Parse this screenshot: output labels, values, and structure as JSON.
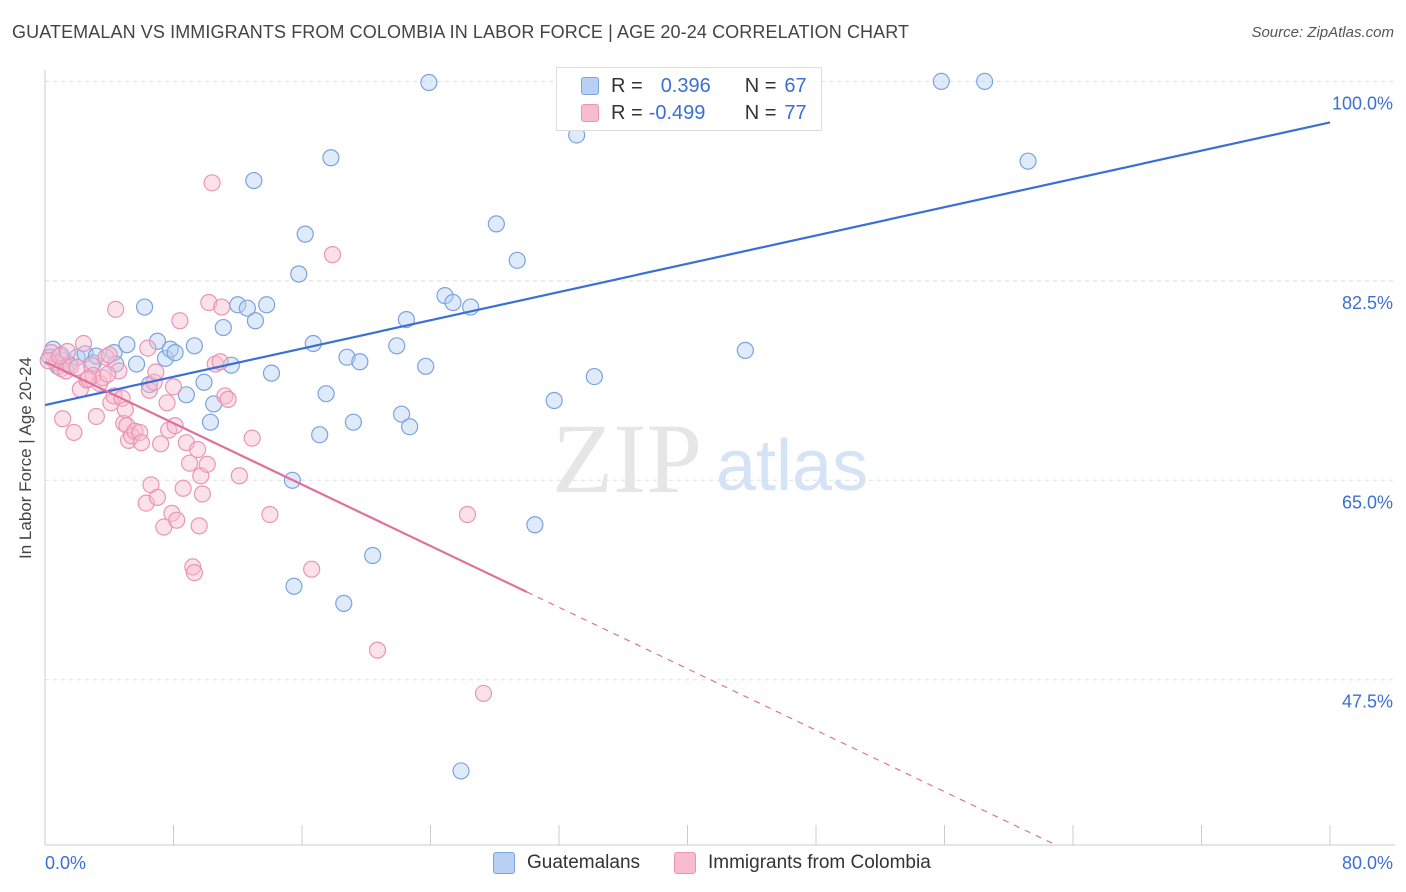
{
  "title": "GUATEMALAN VS IMMIGRANTS FROM COLOMBIA IN LABOR FORCE | AGE 20-24 CORRELATION CHART",
  "source": "Source: ZipAtlas.com",
  "watermark": {
    "zip": "ZIP",
    "atlas": "atlas"
  },
  "legend": {
    "rows": [
      {
        "r_label": "R =",
        "r_value": "0.396",
        "n_label": "N =",
        "n_value": "67"
      },
      {
        "r_label": "R =",
        "r_value": "-0.499",
        "n_label": "N =",
        "n_value": "77"
      }
    ]
  },
  "colors": {
    "blue": "#3b6fd4",
    "blue_fill": "#b8d0f4",
    "pink": "#e0709a",
    "pink_fill": "#f7bcd0",
    "grid": "#dddddd",
    "tick_label": "#3b6fd4"
  },
  "chart_data": {
    "type": "scatter",
    "title": "GUATEMALAN VS IMMIGRANTS FROM COLOMBIA IN LABOR FORCE | AGE 20-24 CORRELATION CHART",
    "xlabel": "",
    "ylabel": "In Labor Force | Age 20-24",
    "xlim": [
      0,
      80
    ],
    "ylim": [
      33,
      101
    ],
    "x_tick_labels": [
      "0.0%",
      "80.0%"
    ],
    "y_ticks": [
      47.5,
      65.0,
      82.5,
      100.0
    ],
    "y_tick_labels": [
      "47.5%",
      "65.0%",
      "82.5%",
      "100.0%"
    ],
    "grid": true,
    "legend_position": "bottom",
    "series": [
      {
        "name": "Guatemalans",
        "color": "#3b6fd4",
        "trend": {
          "x": [
            0,
            80
          ],
          "y": [
            71.6,
            96.4
          ],
          "style": "solid"
        },
        "points": [
          [
            0.5,
            76.5
          ],
          [
            0.8,
            75.0
          ],
          [
            1.2,
            75.5
          ],
          [
            1.5,
            75.2
          ],
          [
            2.0,
            75.8
          ],
          [
            2.5,
            76.1
          ],
          [
            3.0,
            75.3
          ],
          [
            3.2,
            75.9
          ],
          [
            4.3,
            76.2
          ],
          [
            4.4,
            75.2
          ],
          [
            5.1,
            76.9
          ],
          [
            5.7,
            75.2
          ],
          [
            6.2,
            80.2
          ],
          [
            6.5,
            73.4
          ],
          [
            7.0,
            77.2
          ],
          [
            7.5,
            75.7
          ],
          [
            7.8,
            76.5
          ],
          [
            8.1,
            76.2
          ],
          [
            8.8,
            72.5
          ],
          [
            9.3,
            76.8
          ],
          [
            9.9,
            73.6
          ],
          [
            10.3,
            70.1
          ],
          [
            10.5,
            71.7
          ],
          [
            11.1,
            78.4
          ],
          [
            11.6,
            75.1
          ],
          [
            12.0,
            80.4
          ],
          [
            12.6,
            80.1
          ],
          [
            13.1,
            79.0
          ],
          [
            13.8,
            80.4
          ],
          [
            14.1,
            74.4
          ],
          [
            13.0,
            91.3
          ],
          [
            15.4,
            65.0
          ],
          [
            15.5,
            55.7
          ],
          [
            15.8,
            83.1
          ],
          [
            16.2,
            86.6
          ],
          [
            16.7,
            77.0
          ],
          [
            17.1,
            69.0
          ],
          [
            17.5,
            72.6
          ],
          [
            17.8,
            93.3
          ],
          [
            18.6,
            54.2
          ],
          [
            18.8,
            75.8
          ],
          [
            19.2,
            70.1
          ],
          [
            19.6,
            75.4
          ],
          [
            20.4,
            58.4
          ],
          [
            21.9,
            76.8
          ],
          [
            22.2,
            70.8
          ],
          [
            22.5,
            79.1
          ],
          [
            22.7,
            69.7
          ],
          [
            23.7,
            75.0
          ],
          [
            23.9,
            99.9
          ],
          [
            24.9,
            81.2
          ],
          [
            25.4,
            80.6
          ],
          [
            25.9,
            39.5
          ],
          [
            26.5,
            80.2
          ],
          [
            28.1,
            87.5
          ],
          [
            29.4,
            84.3
          ],
          [
            30.5,
            61.1
          ],
          [
            31.7,
            72.0
          ],
          [
            33.1,
            95.3
          ],
          [
            34.2,
            74.1
          ],
          [
            36.2,
            100.0
          ],
          [
            43.6,
            76.4
          ],
          [
            55.8,
            100.0
          ],
          [
            58.5,
            100.0
          ],
          [
            61.2,
            93.0
          ],
          [
            0.3,
            75.8
          ],
          [
            1.0,
            76.0
          ]
        ]
      },
      {
        "name": "Immigrants from Colombia",
        "color": "#e0709a",
        "trend": {
          "x": [
            0,
            30
          ],
          "y": [
            75.4,
            55.2
          ],
          "style": "solid"
        },
        "trend_dashed": {
          "x": [
            30,
            80
          ],
          "y": [
            55.2,
            21.5
          ],
          "style": "dashed"
        },
        "points": [
          [
            0.4,
            76.2
          ],
          [
            0.7,
            75.3
          ],
          [
            1.0,
            74.8
          ],
          [
            1.1,
            70.4
          ],
          [
            1.3,
            74.6
          ],
          [
            1.6,
            75.0
          ],
          [
            1.8,
            69.2
          ],
          [
            2.0,
            74.9
          ],
          [
            2.2,
            73.0
          ],
          [
            2.4,
            77.0
          ],
          [
            2.6,
            73.8
          ],
          [
            2.9,
            75.1
          ],
          [
            3.0,
            74.2
          ],
          [
            3.2,
            70.6
          ],
          [
            3.4,
            73.5
          ],
          [
            3.6,
            74.0
          ],
          [
            3.8,
            75.8
          ],
          [
            4.0,
            76.0
          ],
          [
            4.1,
            71.8
          ],
          [
            4.3,
            72.4
          ],
          [
            4.4,
            80.0
          ],
          [
            4.6,
            74.6
          ],
          [
            4.8,
            72.2
          ],
          [
            4.9,
            70.0
          ],
          [
            5.1,
            69.8
          ],
          [
            5.2,
            68.5
          ],
          [
            5.4,
            68.9
          ],
          [
            5.6,
            69.3
          ],
          [
            5.9,
            69.2
          ],
          [
            6.0,
            68.3
          ],
          [
            6.3,
            63.0
          ],
          [
            6.4,
            76.6
          ],
          [
            6.5,
            72.9
          ],
          [
            6.6,
            64.6
          ],
          [
            6.8,
            73.6
          ],
          [
            7.0,
            63.5
          ],
          [
            7.2,
            68.2
          ],
          [
            7.4,
            60.9
          ],
          [
            7.6,
            71.8
          ],
          [
            7.7,
            69.4
          ],
          [
            7.9,
            62.1
          ],
          [
            8.0,
            73.2
          ],
          [
            8.1,
            69.8
          ],
          [
            8.2,
            61.5
          ],
          [
            8.4,
            79.0
          ],
          [
            8.6,
            64.3
          ],
          [
            8.8,
            68.3
          ],
          [
            9.0,
            66.5
          ],
          [
            9.2,
            57.4
          ],
          [
            9.3,
            56.9
          ],
          [
            9.5,
            67.7
          ],
          [
            9.6,
            61.0
          ],
          [
            9.7,
            65.4
          ],
          [
            9.8,
            63.8
          ],
          [
            10.1,
            66.4
          ],
          [
            10.2,
            80.6
          ],
          [
            10.4,
            91.1
          ],
          [
            10.6,
            75.2
          ],
          [
            10.9,
            75.4
          ],
          [
            11.0,
            80.2
          ],
          [
            11.2,
            72.4
          ],
          [
            11.4,
            72.1
          ],
          [
            12.1,
            65.4
          ],
          [
            12.9,
            68.7
          ],
          [
            14.0,
            62.0
          ],
          [
            16.6,
            57.2
          ],
          [
            17.9,
            84.8
          ],
          [
            20.7,
            50.1
          ],
          [
            26.3,
            62.0
          ],
          [
            27.3,
            46.3
          ],
          [
            0.2,
            75.5
          ],
          [
            0.9,
            75.9
          ],
          [
            1.4,
            76.3
          ],
          [
            2.7,
            73.9
          ],
          [
            3.9,
            74.3
          ],
          [
            5.0,
            71.2
          ],
          [
            6.9,
            74.5
          ]
        ]
      }
    ]
  },
  "axis": {
    "x_min_label": "0.0%",
    "x_max_label": "80.0%",
    "y_label": "In Labor Force | Age 20-24"
  },
  "bottom_legend": {
    "items": [
      "Guatemalans",
      "Immigrants from Colombia"
    ]
  }
}
